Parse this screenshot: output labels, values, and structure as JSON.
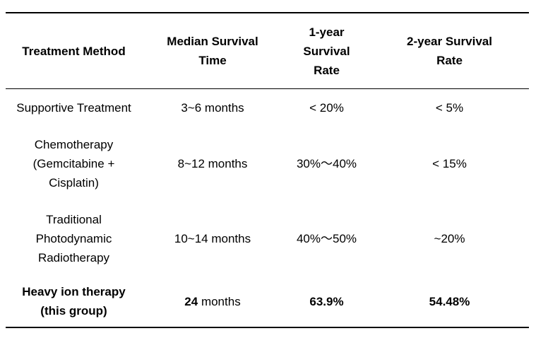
{
  "table": {
    "headers": {
      "method": "Treatment Method",
      "median": "Median Survival Time",
      "one_year": "1-year Survival Rate",
      "two_year": "2-year Survival Rate"
    },
    "rows": [
      {
        "method": "Supportive Treatment",
        "median": "3~6 months",
        "one_year": "< 20%",
        "two_year": "< 5%"
      },
      {
        "method": "Chemotherapy (Gemcitabine + Cisplatin)",
        "median": "8~12 months",
        "one_year": "30%～40%",
        "two_year": "< 15%"
      },
      {
        "method": "Traditional Photodynamic Radiotherapy",
        "median": "10~14 months",
        "one_year": "40%～50%",
        "two_year": "~20%"
      },
      {
        "method": "Heavy ion therapy (this group)",
        "median_value": "24",
        "median_unit": " months",
        "one_year": "63.9%",
        "two_year": "54.48%"
      }
    ]
  }
}
